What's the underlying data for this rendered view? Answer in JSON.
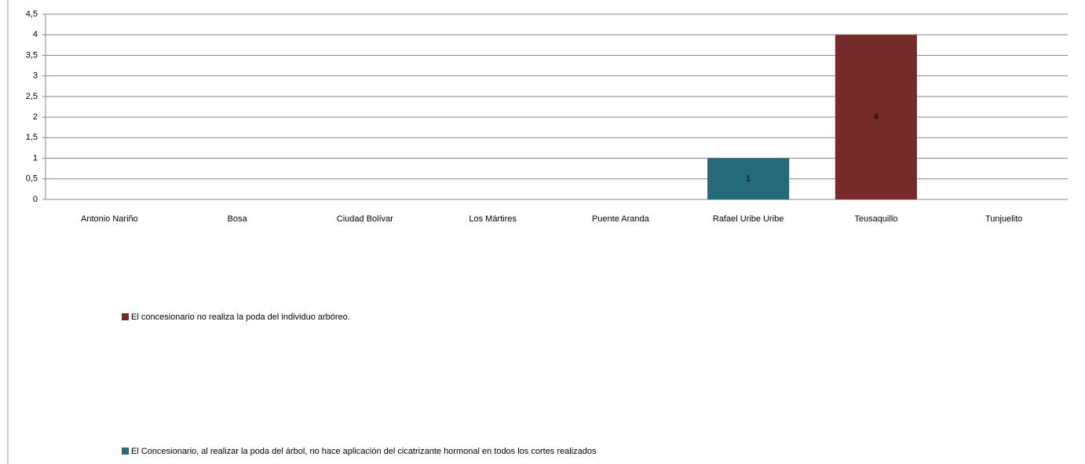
{
  "chart_data": {
    "type": "bar",
    "stacked": true,
    "categories": [
      "Antonio Nariño",
      "Bosa",
      "Ciudad Bolívar",
      "Los Mártires",
      "Puente Aranda",
      "Rafael Uribe Uribe",
      "Teusaquillo",
      "Tunjuelito"
    ],
    "series": [
      {
        "name": "El concesionario no realiza la poda del individuo arbóreo.",
        "color": "#772a2a",
        "values": [
          null,
          null,
          null,
          null,
          null,
          null,
          4,
          null
        ]
      },
      {
        "name": "El Concesionario, al realizar la poda del árbol,  no  hace aplicación del cicatrizante hormonal en todos los cortes realizados",
        "color": "#256a7a",
        "values": [
          null,
          null,
          null,
          null,
          null,
          1,
          null,
          null
        ]
      }
    ],
    "ylim": [
      0,
      4.5
    ],
    "yticks": [
      0,
      {
        "value": 0.5,
        "label": "0,5"
      },
      1,
      {
        "value": 1.5,
        "label": "1,5"
      },
      2,
      {
        "value": 2.5,
        "label": "2,5"
      },
      3,
      {
        "value": 3.5,
        "label": "3,5"
      },
      4,
      {
        "value": 4.5,
        "label": "4,5"
      }
    ],
    "grid": true,
    "data_labels": true
  }
}
